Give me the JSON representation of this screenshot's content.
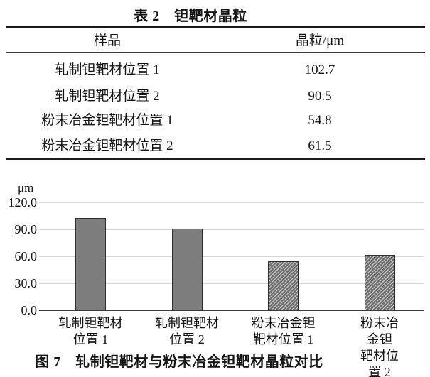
{
  "table": {
    "title": "表 2　钽靶材晶粒",
    "headers": [
      "样品",
      "晶粒/μm"
    ],
    "rows": [
      {
        "sample": "轧制钽靶材位置 1",
        "value": "102.7"
      },
      {
        "sample": "轧制钽靶材位置 2",
        "value": "90.5"
      },
      {
        "sample": "粉末冶金钽靶材位置 1",
        "value": "54.8"
      },
      {
        "sample": "粉末冶金钽靶材位置 2",
        "value": "61.5"
      }
    ]
  },
  "figure": {
    "caption": "图 7　轧制钽靶材与粉末冶金钽靶材晶粒对比"
  },
  "chart_data": {
    "type": "bar",
    "title": "图 7　轧制钽靶材与粉末冶金钽靶材晶粒对比",
    "xlabel": "",
    "ylabel": "μm",
    "ylim": [
      0,
      120
    ],
    "grid": true,
    "legend_position": "none",
    "yticks": [
      {
        "value": 120,
        "label": "120.0"
      },
      {
        "value": 90,
        "label": "90.0"
      },
      {
        "value": 60,
        "label": "60.0"
      },
      {
        "value": 30,
        "label": "30.0"
      },
      {
        "value": 0,
        "label": "0.0"
      }
    ],
    "categories": [
      [
        "轧制钽靶材",
        "位置 1"
      ],
      [
        "轧制钽靶材",
        "位置 2"
      ],
      [
        "粉末冶金钽",
        "靶材位置 1"
      ],
      [
        "粉末冶金钽",
        "靶材位置 2"
      ]
    ],
    "values": [
      102.7,
      90.5,
      54.8,
      61.5
    ],
    "patterns": [
      "solid",
      "solid",
      "hatch",
      "hatch"
    ],
    "colors": {
      "solid_fill": "#7d7d7d",
      "bar_border": "#2f2f2f",
      "hatch_dark": "#6e6e6e",
      "hatch_light": "#c6c6c6",
      "gridline": "#d6d6d6",
      "axis": "#3a3a3a",
      "text": "#141414"
    }
  }
}
